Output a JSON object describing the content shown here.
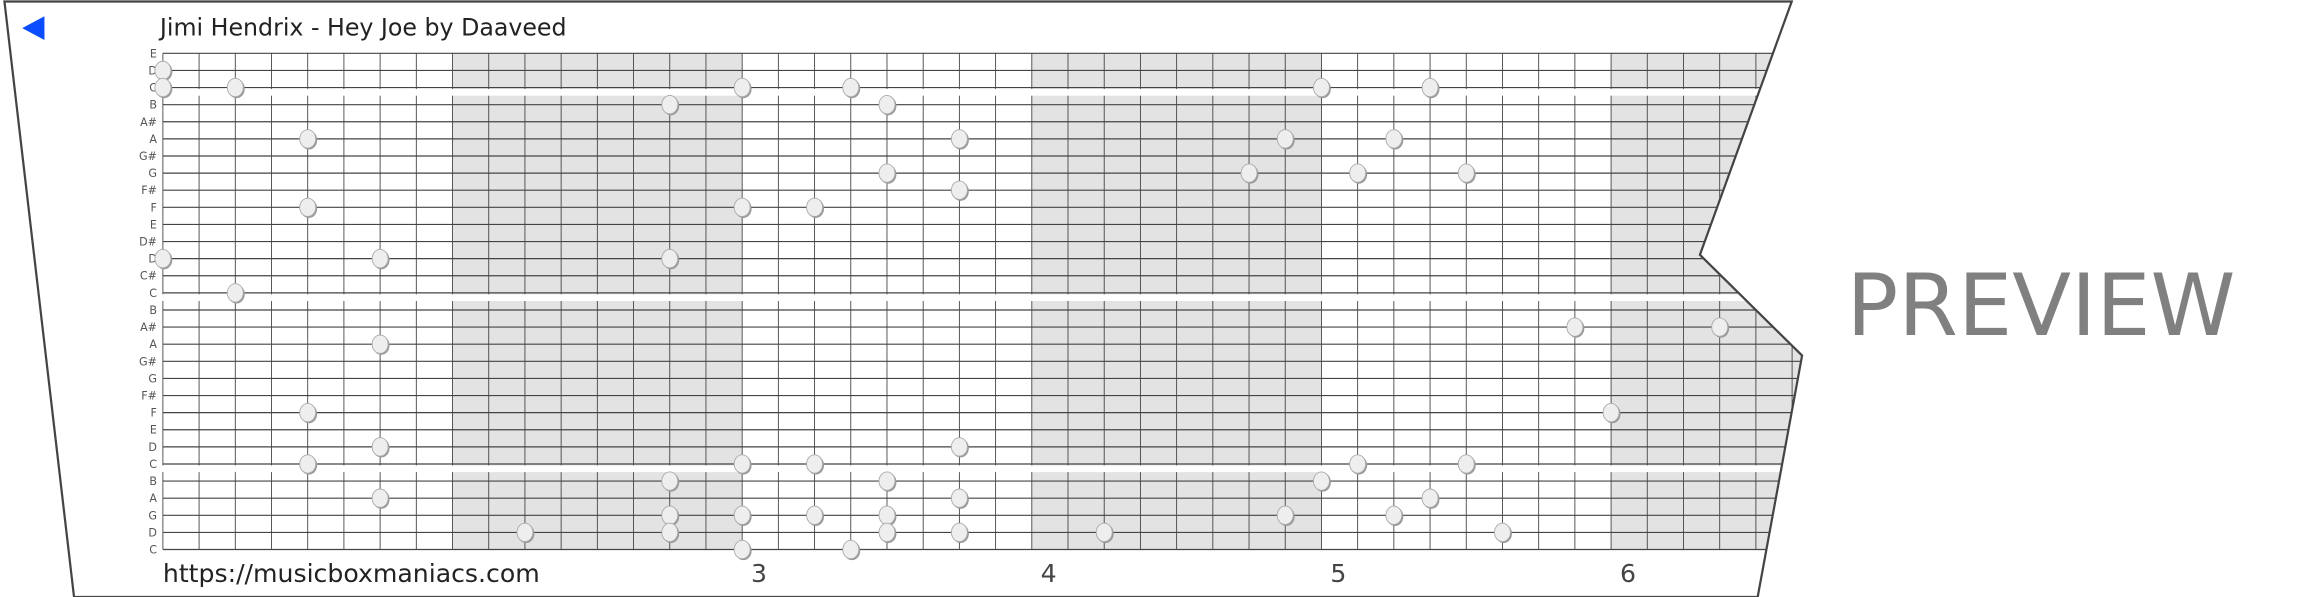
{
  "title": "Jimi Hendrix - Hey Joe by Daaveed",
  "back_icon": "triangle-left-icon",
  "url": "https://musicboxmaniacs.com",
  "watermark": "PREVIEW",
  "colors": {
    "accent": "#0a4cff",
    "shade": "#e3e3e3",
    "grid": "#444444",
    "note": "#eeeeee"
  },
  "strip": {
    "rows": [
      "E",
      "D",
      "C",
      "B",
      "A#",
      "A",
      "G#",
      "G",
      "F#",
      "F",
      "E",
      "D#",
      "D",
      "C#",
      "C",
      "B",
      "A#",
      "A",
      "G#",
      "G",
      "F#",
      "F",
      "E",
      "D",
      "C",
      "B",
      "A",
      "G",
      "D",
      "C"
    ],
    "row_breaks_after": [
      2,
      14,
      24
    ],
    "beats_per_measure": 8,
    "measure_labels": [
      "3",
      "4",
      "5",
      "6"
    ],
    "notes": [
      {
        "row": 1,
        "beat": 0
      },
      {
        "row": 2,
        "beat": 0
      },
      {
        "row": 2,
        "beat": 2
      },
      {
        "row": 3,
        "beat": 14
      },
      {
        "row": 2,
        "beat": 16
      },
      {
        "row": 2,
        "beat": 19
      },
      {
        "row": 3,
        "beat": 20
      },
      {
        "row": 2,
        "beat": 32
      },
      {
        "row": 2,
        "beat": 35
      },
      {
        "row": 5,
        "beat": 4
      },
      {
        "row": 5,
        "beat": 22
      },
      {
        "row": 5,
        "beat": 31
      },
      {
        "row": 5,
        "beat": 34
      },
      {
        "row": 7,
        "beat": 20
      },
      {
        "row": 7,
        "beat": 30
      },
      {
        "row": 7,
        "beat": 33
      },
      {
        "row": 7,
        "beat": 36
      },
      {
        "row": 8,
        "beat": 22
      },
      {
        "row": 9,
        "beat": 4
      },
      {
        "row": 9,
        "beat": 16
      },
      {
        "row": 9,
        "beat": 18
      },
      {
        "row": 12,
        "beat": 0
      },
      {
        "row": 12,
        "beat": 6
      },
      {
        "row": 12,
        "beat": 14
      },
      {
        "row": 14,
        "beat": 2
      },
      {
        "row": 16,
        "beat": 39
      },
      {
        "row": 16,
        "beat": 43
      },
      {
        "row": 17,
        "beat": 6
      },
      {
        "row": 21,
        "beat": 4
      },
      {
        "row": 21,
        "beat": 40
      },
      {
        "row": 23,
        "beat": 6
      },
      {
        "row": 23,
        "beat": 22
      },
      {
        "row": 24,
        "beat": 4
      },
      {
        "row": 24,
        "beat": 16
      },
      {
        "row": 24,
        "beat": 18
      },
      {
        "row": 24,
        "beat": 33
      },
      {
        "row": 24,
        "beat": 36
      },
      {
        "row": 25,
        "beat": 14
      },
      {
        "row": 25,
        "beat": 20
      },
      {
        "row": 25,
        "beat": 32
      },
      {
        "row": 26,
        "beat": 6
      },
      {
        "row": 26,
        "beat": 22
      },
      {
        "row": 26,
        "beat": 35
      },
      {
        "row": 27,
        "beat": 14
      },
      {
        "row": 27,
        "beat": 16
      },
      {
        "row": 27,
        "beat": 18
      },
      {
        "row": 27,
        "beat": 20
      },
      {
        "row": 27,
        "beat": 31
      },
      {
        "row": 27,
        "beat": 34
      },
      {
        "row": 28,
        "beat": 10
      },
      {
        "row": 28,
        "beat": 14
      },
      {
        "row": 28,
        "beat": 20
      },
      {
        "row": 28,
        "beat": 22
      },
      {
        "row": 28,
        "beat": 26
      },
      {
        "row": 28,
        "beat": 37
      },
      {
        "row": 29,
        "beat": 16
      },
      {
        "row": 29,
        "beat": 19
      }
    ]
  }
}
